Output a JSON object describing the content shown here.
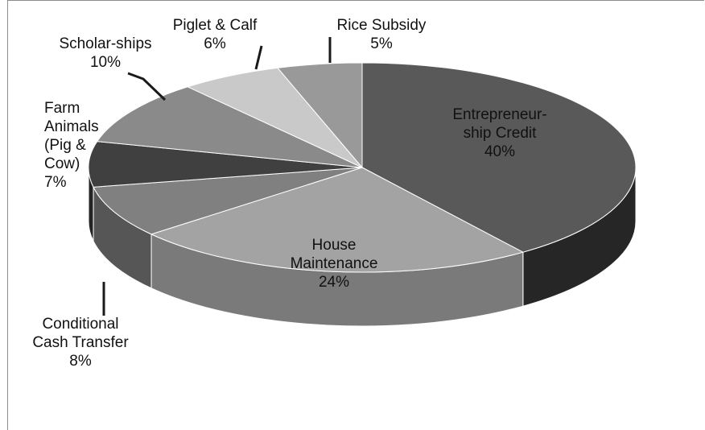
{
  "chart_data": {
    "type": "pie",
    "title": "",
    "slices": [
      {
        "label": "Entrepreneurship Credit",
        "value": 40,
        "lines": [
          "Entrepreneur-",
          "ship Credit",
          "40%"
        ],
        "color": "#595959",
        "side": "#262626"
      },
      {
        "label": "House Maintenance",
        "value": 24,
        "lines": [
          "House",
          "Maintenance",
          "24%"
        ],
        "color": "#a3a3a3",
        "side": "#7a7a7a"
      },
      {
        "label": "Conditional Cash Transfer",
        "value": 8,
        "lines": [
          "Conditional",
          "Cash Transfer",
          "8%"
        ],
        "color": "#808080",
        "side": "#565656"
      },
      {
        "label": "Farm Animals (Pig & Cow)",
        "value": 7,
        "lines": [
          "Farm",
          "Animals",
          "(Pig &",
          "Cow)",
          "7%"
        ],
        "color": "#404040",
        "side": "#242424"
      },
      {
        "label": "Scholar-ships",
        "value": 10,
        "lines": [
          "Scholar-ships",
          "10%"
        ],
        "color": "#8a8a8a",
        "side": "#5e5e5e"
      },
      {
        "label": "Piglet & Calf",
        "value": 6,
        "lines": [
          "Piglet & Calf",
          "6%"
        ],
        "color": "#c9c9c9",
        "side": "#9c9c9c"
      },
      {
        "label": "Rice Subsidy",
        "value": 5,
        "lines": [
          "Rice Subsidy",
          "5%"
        ],
        "color": "#999999",
        "side": "#6e6e6e"
      }
    ],
    "units": "%",
    "style": "3d-pie",
    "legend": "none"
  }
}
